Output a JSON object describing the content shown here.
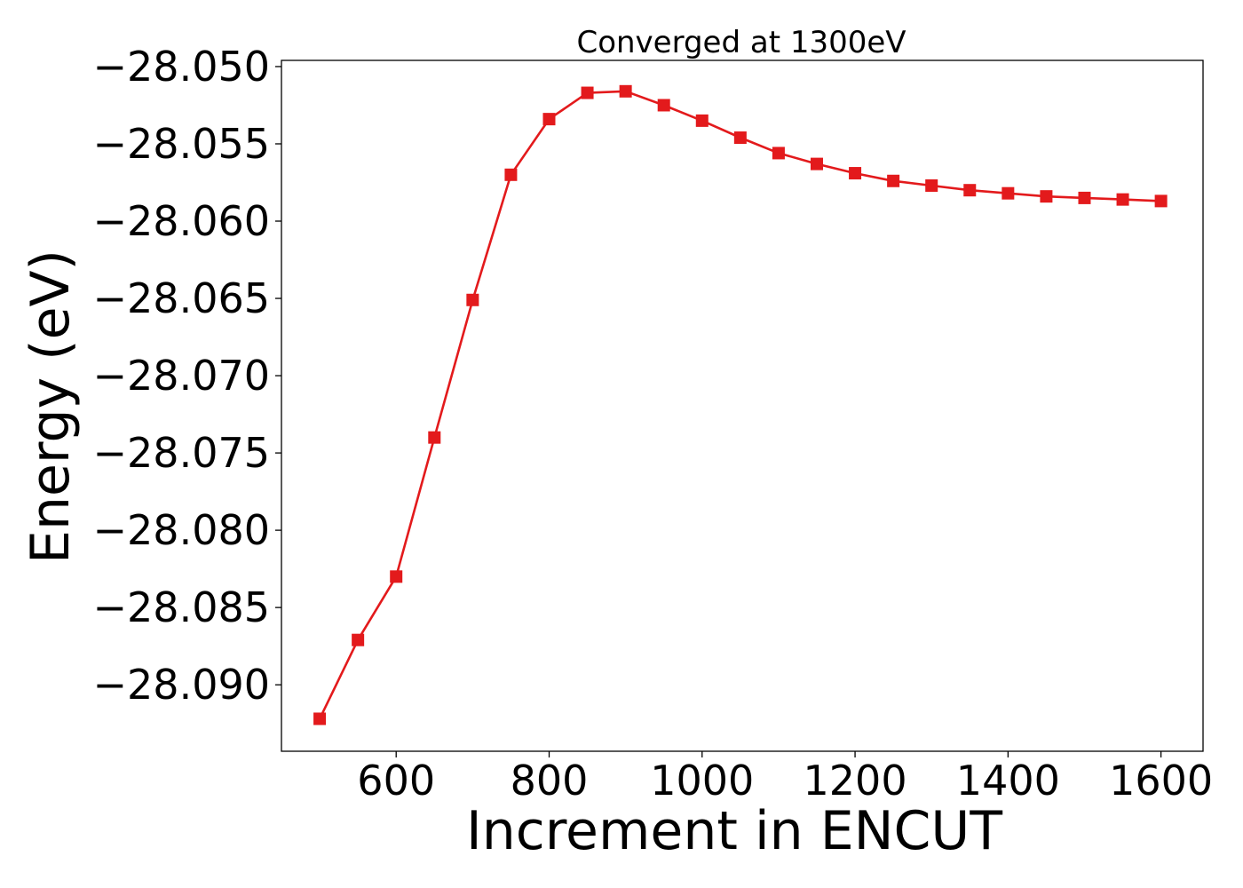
{
  "chart_data": {
    "type": "line",
    "title": "Converged at 1300eV",
    "xlabel": "Increment in ENCUT",
    "ylabel": "Energy (eV)",
    "xlim": [
      450,
      1655
    ],
    "ylim": [
      -28.0943,
      -28.0496
    ],
    "xticks": [
      600,
      800,
      1000,
      1200,
      1400,
      1600
    ],
    "xtick_labels": [
      "600",
      "800",
      "1000",
      "1200",
      "1400",
      "1600"
    ],
    "yticks": [
      -28.05,
      -28.055,
      -28.06,
      -28.065,
      -28.07,
      -28.075,
      -28.08,
      -28.085,
      -28.09
    ],
    "ytick_labels": [
      "−28.050",
      "−28.055",
      "−28.060",
      "−28.065",
      "−28.070",
      "−28.075",
      "−28.080",
      "−28.085",
      "−28.090"
    ],
    "grid": false,
    "series": [
      {
        "color": "#e31a1c",
        "marker": "square",
        "x": [
          500,
          550,
          600,
          650,
          700,
          750,
          800,
          850,
          900,
          950,
          1000,
          1050,
          1100,
          1150,
          1200,
          1250,
          1300,
          1350,
          1400,
          1450,
          1500,
          1550,
          1600
        ],
        "y": [
          -28.0922,
          -28.0871,
          -28.083,
          -28.074,
          -28.0651,
          -28.057,
          -28.0534,
          -28.0517,
          -28.0516,
          -28.0525,
          -28.0535,
          -28.0546,
          -28.0556,
          -28.0563,
          -28.0569,
          -28.0574,
          -28.0577,
          -28.058,
          -28.0582,
          -28.0584,
          -28.0585,
          -28.0586,
          -28.0587
        ]
      }
    ]
  }
}
